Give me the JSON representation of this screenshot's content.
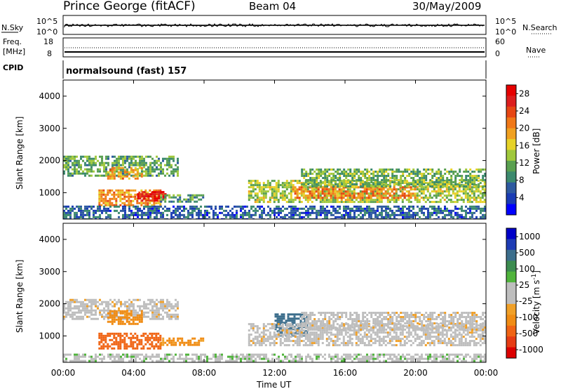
{
  "header": {
    "station": "Prince George (fitACF)",
    "beam": "Beam 04",
    "date": "30/May/2009"
  },
  "panels": {
    "nsky": {
      "left_label": "N.Sky",
      "tick_labels": [
        "10^5",
        "10^0"
      ],
      "right_label": "N.Search",
      "right_ticks": [
        "10^5",
        "10^0"
      ]
    },
    "freq": {
      "label_lines": [
        "Freq.",
        "[MHz]"
      ],
      "tick_labels": [
        "18",
        "8"
      ],
      "right_label": "Nave",
      "right_ticks": [
        "60",
        "0"
      ]
    },
    "cpid": {
      "label": "CPID",
      "value": "normalsound (fast) 157"
    }
  },
  "colors": {
    "power_scale": [
      "#0000ff",
      "#1a3cb4",
      "#2e5aa0",
      "#3c8a6e",
      "#5aa050",
      "#a0c83c",
      "#e6d228",
      "#f0a020",
      "#f07818",
      "#e64614",
      "#dc1e1e",
      "#e60000"
    ],
    "velocity_scale": [
      "#0000c8",
      "#1e3cb4",
      "#3c6e8c",
      "#3c8c50",
      "#50b43c",
      "#bebebe",
      "#bebebe",
      "#f0a028",
      "#f08c14",
      "#f06414",
      "#e63c14",
      "#dc0000"
    ]
  },
  "chart_data": [
    {
      "type": "heatmap",
      "title": "",
      "xlabel": "Time UT",
      "ylabel": "Slant Range [km]",
      "x_ticks": [
        "00:00",
        "04:00",
        "08:00",
        "12:00",
        "16:00",
        "20:00",
        "00:00"
      ],
      "y_ticks": [
        "1000",
        "2000",
        "3000",
        "4000"
      ],
      "xlim_hours": [
        0,
        24
      ],
      "ylim_km": [
        180,
        4500
      ],
      "colorbar": {
        "label": "Power [dB]",
        "ticks": [
          "4",
          "8",
          "12",
          "16",
          "20",
          "24",
          "28"
        ],
        "range": [
          0,
          30
        ]
      },
      "regions": [
        {
          "t": [
            0.0,
            6.5
          ],
          "r": [
            1550,
            2150
          ],
          "level": 11
        },
        {
          "t": [
            2.0,
            5.5
          ],
          "r": [
            600,
            1100
          ],
          "level": 20
        },
        {
          "t": [
            4.2,
            5.8
          ],
          "r": [
            750,
            1050
          ],
          "level": 27
        },
        {
          "t": [
            2.5,
            4.5
          ],
          "r": [
            1450,
            1800
          ],
          "level": 19
        },
        {
          "t": [
            5.5,
            8.0
          ],
          "r": [
            700,
            950
          ],
          "level": 10
        },
        {
          "t": [
            10.5,
            24.0
          ],
          "r": [
            700,
            1400
          ],
          "level": 14
        },
        {
          "t": [
            13.0,
            20.0
          ],
          "r": [
            850,
            1200
          ],
          "level": 21
        },
        {
          "t": [
            13.5,
            24.0
          ],
          "r": [
            1200,
            1750
          ],
          "level": 12
        },
        {
          "t": [
            0.0,
            24.0
          ],
          "r": [
            180,
            600
          ],
          "level": 6
        }
      ]
    },
    {
      "type": "heatmap",
      "title": "",
      "xlabel": "Time UT",
      "ylabel": "Slant Range [km]",
      "x_ticks": [
        "00:00",
        "04:00",
        "08:00",
        "12:00",
        "16:00",
        "20:00",
        "00:00"
      ],
      "y_ticks": [
        "1000",
        "2000",
        "3000",
        "4000"
      ],
      "xlim_hours": [
        0,
        24
      ],
      "ylim_km": [
        180,
        4500
      ],
      "colorbar": {
        "label": "Velocity [m s^-1]",
        "ticks": [
          "1000",
          "500",
          "100",
          "25",
          "-25",
          "-100",
          "-500",
          "-1000"
        ],
        "range": [
          -1200,
          1200
        ]
      },
      "regions": [
        {
          "t": [
            0.0,
            6.5
          ],
          "r": [
            1550,
            2150
          ],
          "value": 0
        },
        {
          "t": [
            2.0,
            5.5
          ],
          "r": [
            600,
            1100
          ],
          "value": -300
        },
        {
          "t": [
            2.5,
            4.5
          ],
          "r": [
            1400,
            1800
          ],
          "value": -150
        },
        {
          "t": [
            5.5,
            8.0
          ],
          "r": [
            700,
            950
          ],
          "value": -120
        },
        {
          "t": [
            12.0,
            13.8
          ],
          "r": [
            1000,
            1700
          ],
          "value": 600
        },
        {
          "t": [
            10.5,
            24.0
          ],
          "r": [
            700,
            1400
          ],
          "value": 0
        },
        {
          "t": [
            13.5,
            24.0
          ],
          "r": [
            1200,
            1750
          ],
          "value": 0
        },
        {
          "t": [
            0.0,
            24.0
          ],
          "r": [
            180,
            450
          ],
          "value": 80
        }
      ]
    }
  ]
}
